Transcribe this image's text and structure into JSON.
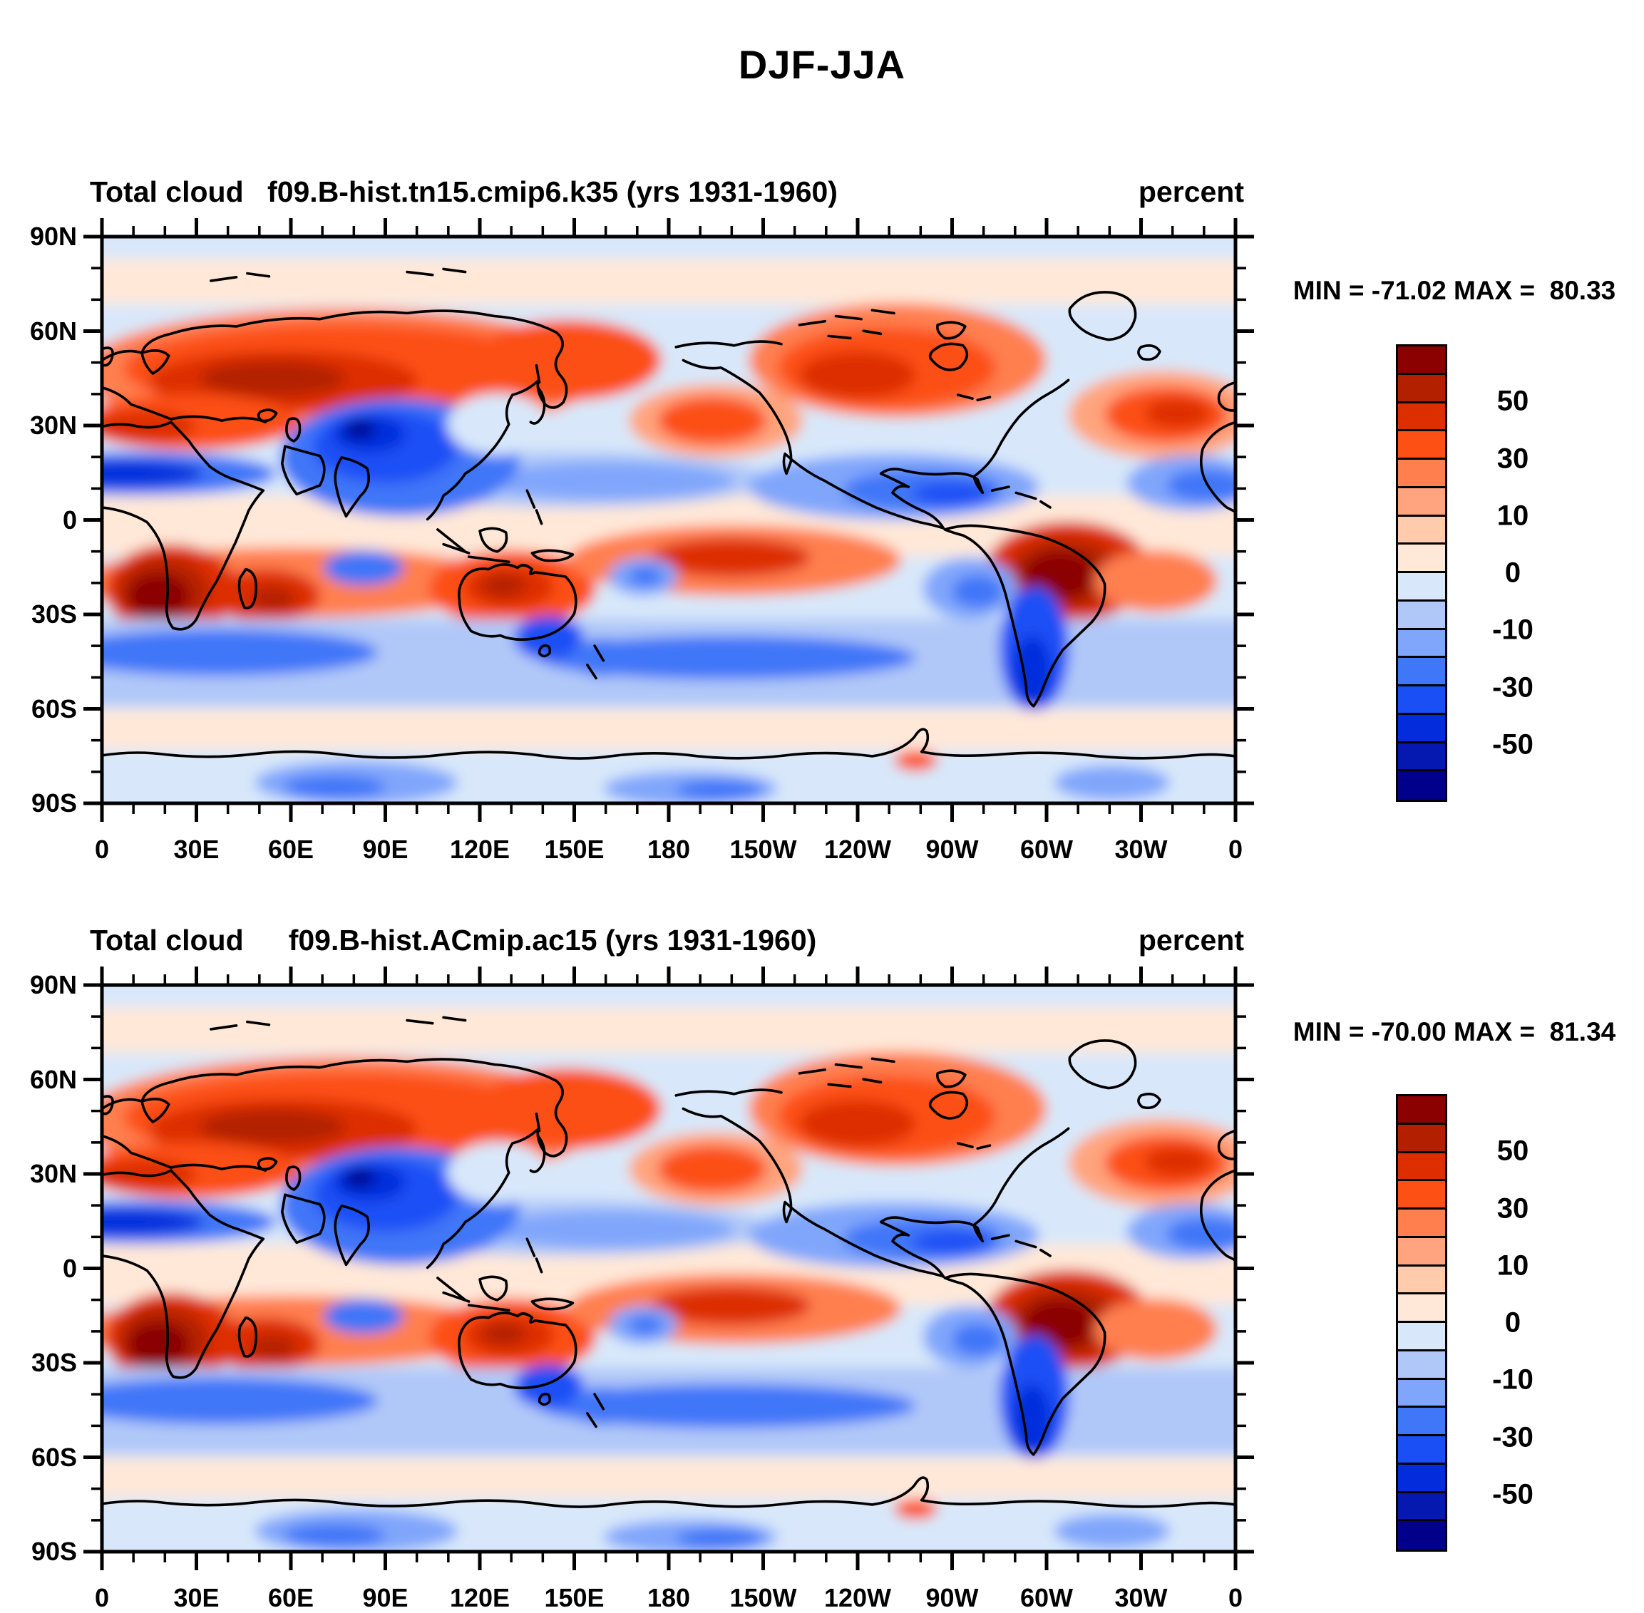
{
  "main_title": "DJF-JJA",
  "panels": [
    {
      "variable": "Total cloud",
      "title": "f09.B-hist.tn15.cmip6.k35 (yrs 1931-1960)",
      "units": "percent",
      "stats_text": "MIN = -71.02 MAX =  80.33",
      "min": -71.02,
      "max": 80.33
    },
    {
      "variable": "Total cloud",
      "title": "f09.B-hist.ACmip.ac15 (yrs 1931-1960)",
      "units": "percent",
      "stats_text": "MIN = -70.00 MAX =  81.34",
      "min": -70.0,
      "max": 81.34
    }
  ],
  "axes": {
    "lon_labels": [
      "0",
      "30E",
      "60E",
      "90E",
      "120E",
      "150E",
      "180",
      "150W",
      "120W",
      "90W",
      "60W",
      "30W",
      "0"
    ],
    "lat_labels": [
      "90N",
      "60N",
      "30N",
      "0",
      "30S",
      "60S",
      "90S"
    ]
  },
  "colorbar": {
    "tick_labels": [
      "50",
      "30",
      "10",
      "0",
      "-10",
      "-30",
      "-50"
    ],
    "levels": [
      60,
      50,
      40,
      30,
      20,
      10,
      5,
      0,
      -5,
      -10,
      -20,
      -30,
      -40,
      -50,
      -60
    ],
    "colors": [
      "#8B0000",
      "#B32000",
      "#DD2E00",
      "#FC5014",
      "#FF7F4F",
      "#FFA47E",
      "#FFCBAD",
      "#FFE8D8",
      "#D8E8FA",
      "#B0C8F8",
      "#80A6FB",
      "#4076F8",
      "#1A4FF5",
      "#032DDC",
      "#0518B0",
      "#00008B"
    ]
  },
  "chart_data": [
    {
      "type": "heatmap",
      "subtype": "filled-contour-world-map",
      "figure_title": "DJF-JJA",
      "title": "f09.B-hist.tn15.cmip6.k35 (yrs 1931-1960)",
      "variable": "Total cloud",
      "units": "percent",
      "data_min": -71.02,
      "data_max": 80.33,
      "x_tick_labels": [
        "0",
        "30E",
        "60E",
        "90E",
        "120E",
        "150E",
        "180",
        "150W",
        "120W",
        "90W",
        "60W",
        "30W",
        "0"
      ],
      "y_tick_labels": [
        "90N",
        "60N",
        "30N",
        "0",
        "30S",
        "60S",
        "90S"
      ],
      "contour_levels": [
        -60,
        -50,
        -40,
        -30,
        -20,
        -10,
        -5,
        0,
        5,
        10,
        20,
        30,
        40,
        50,
        60
      ],
      "colorbar_tick_labels": [
        "50",
        "30",
        "10",
        "0",
        "-10",
        "-30",
        "-50"
      ],
      "palette_pos_to_neg": [
        "#8B0000",
        "#B32000",
        "#DD2E00",
        "#FC5014",
        "#FF7F4F",
        "#FFA47E",
        "#FFCBAD",
        "#FFE8D8",
        "#D8E8FA",
        "#B0C8F8",
        "#80A6FB",
        "#4076F8",
        "#1A4FF5",
        "#032DDC",
        "#0518B0",
        "#00008B"
      ],
      "legend_position": "right",
      "notable_pattern": "positive (red) over NH mid/high-latitude continents, S. Africa, Amazon, Australia, central S. Pacific; negative (blue) over India/Tibet, subtropical N. Pacific/Caribbean, Sahel, SH mid-latitude oceans, Patagonia"
    },
    {
      "type": "heatmap",
      "subtype": "filled-contour-world-map",
      "figure_title": "DJF-JJA",
      "title": "f09.B-hist.ACmip.ac15 (yrs 1931-1960)",
      "variable": "Total cloud",
      "units": "percent",
      "data_min": -70.0,
      "data_max": 81.34,
      "x_tick_labels": [
        "0",
        "30E",
        "60E",
        "90E",
        "120E",
        "150E",
        "180",
        "150W",
        "120W",
        "90W",
        "60W",
        "30W",
        "0"
      ],
      "y_tick_labels": [
        "90N",
        "60N",
        "30N",
        "0",
        "30S",
        "60S",
        "90S"
      ],
      "contour_levels": [
        -60,
        -50,
        -40,
        -30,
        -20,
        -10,
        -5,
        0,
        5,
        10,
        20,
        30,
        40,
        50,
        60
      ],
      "colorbar_tick_labels": [
        "50",
        "30",
        "10",
        "0",
        "-10",
        "-30",
        "-50"
      ],
      "palette_pos_to_neg": [
        "#8B0000",
        "#B32000",
        "#DD2E00",
        "#FC5014",
        "#FF7F4F",
        "#FFA47E",
        "#FFCBAD",
        "#FFE8D8",
        "#D8E8FA",
        "#B0C8F8",
        "#80A6FB",
        "#4076F8",
        "#1A4FF5",
        "#032DDC",
        "#0518B0",
        "#00008B"
      ],
      "legend_position": "right",
      "notable_pattern": "same spatial pattern as upper panel with slightly different extremes"
    }
  ]
}
